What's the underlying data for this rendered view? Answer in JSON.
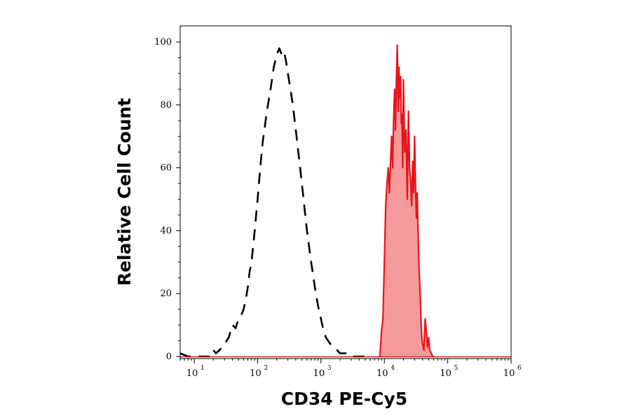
{
  "chart_data": {
    "type": "area",
    "xlabel": "CD34 PE-Cy5",
    "ylabel": "Relative Cell Count",
    "x_scale": "log",
    "xlim": [
      6,
      1000000
    ],
    "ylim": [
      0,
      100
    ],
    "x_ticks": [
      {
        "value": 10,
        "base": "10",
        "exp": "1"
      },
      {
        "value": 100,
        "base": "10",
        "exp": "2"
      },
      {
        "value": 1000,
        "base": "10",
        "exp": "3"
      },
      {
        "value": 10000,
        "base": "10",
        "exp": "4"
      },
      {
        "value": 100000,
        "base": "10",
        "exp": "5"
      },
      {
        "value": 1000000,
        "base": "10",
        "exp": "6"
      }
    ],
    "y_ticks": [
      {
        "value": 0,
        "label": "0"
      },
      {
        "value": 20,
        "label": "20"
      },
      {
        "value": 40,
        "label": "40"
      },
      {
        "value": 60,
        "label": "60"
      },
      {
        "value": 80,
        "label": "80"
      },
      {
        "value": 100,
        "label": "100"
      }
    ],
    "grid": false,
    "series": [
      {
        "style": "dashed",
        "color": "#000000",
        "x": [
          6,
          8,
          12,
          18,
          20,
          22,
          25,
          30,
          35,
          40,
          45,
          50,
          55,
          60,
          65,
          70,
          75,
          80,
          90,
          100,
          110,
          120,
          140,
          160,
          180,
          200,
          220,
          240,
          260,
          280,
          300,
          330,
          360,
          400,
          450,
          500,
          550,
          600,
          700,
          800,
          900,
          1000,
          1100,
          1200,
          1400,
          1600,
          1800,
          2000,
          2500,
          3000,
          4000,
          5000,
          6000
        ],
        "y": [
          1,
          0,
          0,
          0,
          2,
          1,
          2,
          4,
          6,
          10,
          9,
          12,
          13,
          15,
          18,
          22,
          27,
          30,
          40,
          50,
          60,
          68,
          78,
          85,
          92,
          96,
          98,
          96,
          97,
          94,
          90,
          85,
          80,
          72,
          63,
          55,
          47,
          40,
          30,
          22,
          16,
          12,
          8,
          6,
          4,
          3,
          2,
          1,
          1,
          0,
          0,
          0,
          0
        ]
      },
      {
        "style": "filled",
        "color": "#e8141c",
        "fill": "#f59a9a",
        "x": [
          8500,
          9000,
          9500,
          10000,
          10500,
          11000,
          11500,
          12000,
          12500,
          13000,
          13500,
          14000,
          14500,
          15000,
          15500,
          16000,
          16500,
          17000,
          17500,
          18000,
          18500,
          19000,
          19500,
          20000,
          21000,
          22000,
          23000,
          24000,
          25000,
          26000,
          27000,
          28000,
          29000,
          30000,
          31000,
          32000,
          33000,
          34000,
          35000,
          36000,
          37000,
          38000,
          39000,
          40000,
          42000,
          44000,
          46000,
          48000,
          50000,
          52000,
          55000,
          58000,
          60000
        ],
        "y": [
          0,
          8,
          12,
          30,
          48,
          55,
          60,
          52,
          62,
          70,
          60,
          75,
          85,
          72,
          88,
          99,
          78,
          92,
          82,
          89,
          74,
          77,
          60,
          88,
          65,
          72,
          50,
          78,
          60,
          56,
          48,
          62,
          52,
          70,
          55,
          44,
          52,
          40,
          30,
          24,
          18,
          10,
          6,
          4,
          2,
          12,
          8,
          3,
          6,
          2,
          1,
          0,
          0
        ]
      }
    ]
  }
}
